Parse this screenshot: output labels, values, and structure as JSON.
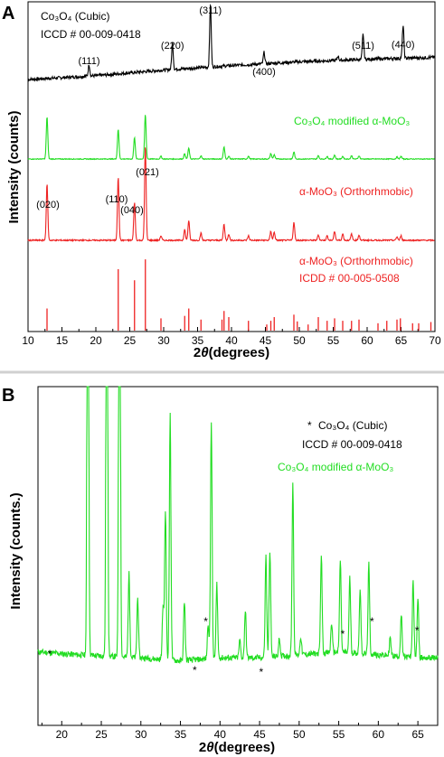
{
  "colors": {
    "black": "#000000",
    "green": "#22dd22",
    "red": "#ee2222",
    "divider": "#d0d0d0"
  },
  "chart_data": [
    {
      "panel": "A",
      "type": "line",
      "xlabel_prefix": "2",
      "xlabel_theta": "θ",
      "xlabel_rest": "(degrees)",
      "ylabel": "Intensity (counts)",
      "xlim": [
        10,
        70
      ],
      "x_ticks": [
        "10",
        "15",
        "20",
        "25",
        "30",
        "35",
        "40",
        "45",
        "50",
        "55",
        "60",
        "65",
        "70"
      ],
      "series": [
        {
          "key": "co3o4",
          "color": "#000000",
          "baseline": [
            [
              10,
              0.0
            ],
            [
              20,
              0.06
            ],
            [
              30,
              0.15
            ],
            [
              40,
              0.22
            ],
            [
              50,
              0.28
            ],
            [
              60,
              0.32
            ],
            [
              70,
              0.35
            ]
          ],
          "peaks": [
            [
              19.0,
              0.18
            ],
            [
              31.3,
              0.42
            ],
            [
              36.9,
              1.0
            ],
            [
              44.8,
              0.18
            ],
            [
              55.7,
              0.07
            ],
            [
              59.4,
              0.4
            ],
            [
              65.3,
              0.52
            ]
          ],
          "labels": [
            "Co₃O₄ (Cubic)",
            "ICCD # 00-009-0418"
          ],
          "peak_labels": [
            {
              "x": 19.0,
              "text": "(111)"
            },
            {
              "x": 31.3,
              "text": "(220)"
            },
            {
              "x": 36.9,
              "text": "(311)"
            },
            {
              "x": 44.8,
              "text": "(400)"
            },
            {
              "x": 59.4,
              "text": "(511)"
            },
            {
              "x": 65.3,
              "text": "(440)"
            }
          ]
        },
        {
          "key": "modified",
          "color": "#22dd22",
          "peaks": [
            [
              12.8,
              0.78
            ],
            [
              23.3,
              0.55
            ],
            [
              25.7,
              0.4
            ],
            [
              27.3,
              0.82
            ],
            [
              29.6,
              0.05
            ],
            [
              33.1,
              0.1
            ],
            [
              33.7,
              0.2
            ],
            [
              35.5,
              0.06
            ],
            [
              38.9,
              0.22
            ],
            [
              39.6,
              0.05
            ],
            [
              42.5,
              0.05
            ],
            [
              45.8,
              0.1
            ],
            [
              46.3,
              0.08
            ],
            [
              49.2,
              0.13
            ],
            [
              52.8,
              0.06
            ],
            [
              54.1,
              0.05
            ],
            [
              55.2,
              0.07
            ],
            [
              56.4,
              0.05
            ],
            [
              57.7,
              0.06
            ],
            [
              58.8,
              0.06
            ],
            [
              64.4,
              0.04
            ],
            [
              65.0,
              0.05
            ]
          ],
          "labels": [
            "Co₃O₄ modified α-MoO₃"
          ]
        },
        {
          "key": "moo3",
          "color": "#ee2222",
          "peaks": [
            [
              12.8,
              0.62
            ],
            [
              23.3,
              0.7
            ],
            [
              25.7,
              0.42
            ],
            [
              27.3,
              1.05
            ],
            [
              29.6,
              0.05
            ],
            [
              33.1,
              0.12
            ],
            [
              33.7,
              0.22
            ],
            [
              35.5,
              0.08
            ],
            [
              38.9,
              0.18
            ],
            [
              39.6,
              0.07
            ],
            [
              42.5,
              0.05
            ],
            [
              45.8,
              0.1
            ],
            [
              46.3,
              0.09
            ],
            [
              49.2,
              0.2
            ],
            [
              52.8,
              0.06
            ],
            [
              54.1,
              0.05
            ],
            [
              55.2,
              0.1
            ],
            [
              56.4,
              0.07
            ],
            [
              57.7,
              0.07
            ],
            [
              58.8,
              0.06
            ],
            [
              64.4,
              0.04
            ],
            [
              65.0,
              0.05
            ]
          ],
          "labels": [
            "α-MoO₃ (Orthorhmobic)"
          ],
          "peak_labels": [
            {
              "x": 12.8,
              "text": "(020)"
            },
            {
              "x": 23.3,
              "text": "(110)"
            },
            {
              "x": 25.7,
              "text": "(040)"
            },
            {
              "x": 27.3,
              "text": "(021)"
            }
          ]
        },
        {
          "key": "reference",
          "color": "#ee2222",
          "sticks": [
            [
              12.8,
              0.36
            ],
            [
              23.3,
              1.0
            ],
            [
              25.7,
              0.82
            ],
            [
              27.3,
              1.16
            ],
            [
              29.6,
              0.2
            ],
            [
              33.1,
              0.24
            ],
            [
              33.7,
              0.36
            ],
            [
              35.5,
              0.18
            ],
            [
              38.6,
              0.18
            ],
            [
              38.9,
              0.32
            ],
            [
              39.6,
              0.22
            ],
            [
              42.5,
              0.16
            ],
            [
              45.2,
              0.1
            ],
            [
              45.8,
              0.16
            ],
            [
              46.3,
              0.22
            ],
            [
              49.2,
              0.26
            ],
            [
              49.7,
              0.15
            ],
            [
              51.3,
              0.1
            ],
            [
              52.8,
              0.22
            ],
            [
              54.1,
              0.16
            ],
            [
              55.2,
              0.2
            ],
            [
              56.4,
              0.16
            ],
            [
              57.7,
              0.16
            ],
            [
              58.8,
              0.18
            ],
            [
              61.6,
              0.12
            ],
            [
              62.9,
              0.16
            ],
            [
              64.4,
              0.18
            ],
            [
              64.9,
              0.2
            ],
            [
              66.7,
              0.12
            ],
            [
              67.6,
              0.12
            ],
            [
              69.4,
              0.14
            ]
          ],
          "labels": [
            "α-MoO₃ (Orthorhmobic)",
            "ICDD # 00-005-0508"
          ]
        }
      ]
    },
    {
      "panel": "B",
      "type": "line",
      "xlabel_prefix": "2",
      "xlabel_theta": "θ",
      "xlabel_rest": "(degrees)",
      "ylabel": "Intensity (counts.)",
      "xlim": [
        17,
        67.5
      ],
      "x_ticks": [
        "20",
        "25",
        "30",
        "35",
        "40",
        "45",
        "50",
        "55",
        "60",
        "65"
      ],
      "legend": [
        {
          "marker": "*",
          "text": "Co₃O₄ (Cubic)"
        },
        {
          "marker": "",
          "text": "ICCD # 00-009-0418"
        },
        {
          "marker": "",
          "text": "Co₃O₄ modified α-MoO₃"
        }
      ],
      "series": [
        {
          "key": "modified-zoom",
          "color": "#22dd22",
          "baseline": [
            [
              17,
              0.08
            ],
            [
              22,
              0.07
            ],
            [
              30,
              0.06
            ],
            [
              35,
              0.05
            ],
            [
              40,
              0.06
            ],
            [
              45,
              0.06
            ],
            [
              50,
              0.07
            ],
            [
              55,
              0.08
            ],
            [
              60,
              0.07
            ],
            [
              65,
              0.06
            ],
            [
              67.5,
              0.06
            ]
          ],
          "peaks": [
            [
              23.3,
              2.0
            ],
            [
              25.7,
              2.0
            ],
            [
              27.3,
              2.0
            ],
            [
              28.5,
              0.28
            ],
            [
              29.6,
              0.2
            ],
            [
              32.8,
              0.18
            ],
            [
              33.1,
              0.5
            ],
            [
              33.7,
              0.82
            ],
            [
              35.5,
              0.2
            ],
            [
              38.5,
              0.12
            ],
            [
              38.9,
              0.8
            ],
            [
              39.6,
              0.25
            ],
            [
              42.5,
              0.06
            ],
            [
              43.2,
              0.16
            ],
            [
              45.8,
              0.34
            ],
            [
              46.3,
              0.36
            ],
            [
              47.5,
              0.06
            ],
            [
              49.2,
              0.58
            ],
            [
              50.2,
              0.06
            ],
            [
              52.8,
              0.33
            ],
            [
              54.1,
              0.1
            ],
            [
              55.2,
              0.31
            ],
            [
              56.4,
              0.25
            ],
            [
              57.7,
              0.22
            ],
            [
              58.8,
              0.3
            ],
            [
              61.5,
              0.06
            ],
            [
              62.9,
              0.14
            ],
            [
              64.4,
              0.26
            ],
            [
              65.0,
              0.2
            ]
          ],
          "asterisks": [
            18.5,
            36.8,
            38.2,
            45.2,
            55.5,
            59.2,
            64.9
          ]
        }
      ]
    }
  ]
}
